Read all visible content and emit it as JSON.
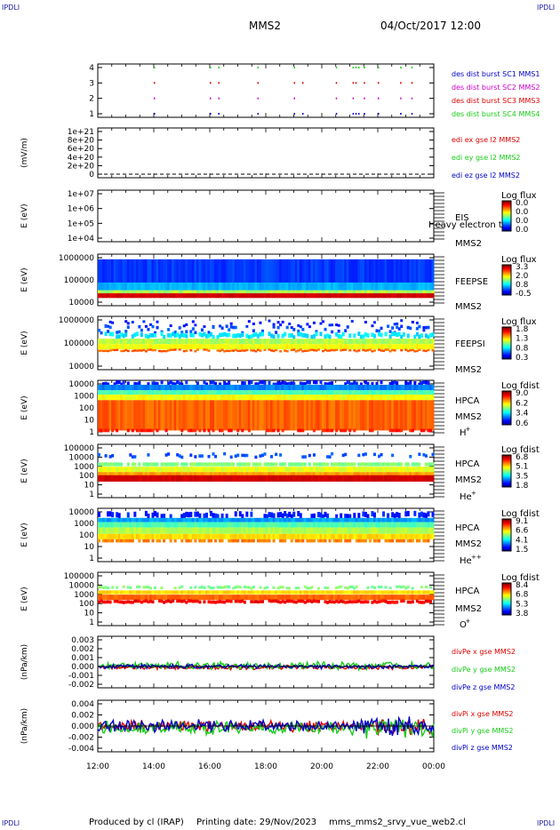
{
  "corners": {
    "tl": "IPDLI",
    "tr": "IPDLI",
    "bl": "IPDLI",
    "br": "IPDLI"
  },
  "header": {
    "spacecraft": "MMS2",
    "datetime": "04/Oct/2017 12:00"
  },
  "footer": {
    "produced": "Produced by cl (IRAP)",
    "printing": "Printing date: 29/Nov/2023",
    "file": "mms_mms2_srvy_vue_web2.cl"
  },
  "colors": {
    "red": "#e00000",
    "green": "#18cc18",
    "blue": "#0000c8",
    "magenta": "#cc00cc",
    "black": "#000000"
  },
  "chart_data": [
    {
      "type": "scatter",
      "name": "burst",
      "ylim": [
        0.5,
        4.5
      ],
      "ticks": [
        "1",
        "2",
        "3",
        "4"
      ],
      "ylabel": "",
      "legend": [
        {
          "text": "des dist burst SC1 MMS1",
          "color": "#0000c8"
        },
        {
          "text": "des dist burst SC2 MMS2",
          "color": "#cc00cc"
        },
        {
          "text": "des dist burst SC3 MMS3",
          "color": "#e00000"
        },
        {
          "text": "des dist burst SC4 MMS4",
          "color": "#18cc18"
        }
      ],
      "series": [
        {
          "level": 4,
          "color": "#18cc18",
          "x": [
            14.0,
            16.0,
            16.3,
            17.7,
            19.0,
            20.5,
            21.1,
            21.2,
            21.3,
            21.5,
            22.0,
            22.8,
            23.2
          ]
        },
        {
          "level": 3,
          "color": "#e00000",
          "x": [
            14.0,
            16.0,
            16.3,
            17.7,
            19.0,
            19.3,
            20.5,
            21.1,
            21.2,
            21.5,
            22.0,
            22.8,
            23.2
          ]
        },
        {
          "level": 2,
          "color": "#cc00cc",
          "x": [
            14.0,
            16.0,
            16.3,
            17.7,
            19.0,
            20.5,
            21.1,
            21.5,
            22.0,
            22.8,
            23.2
          ]
        },
        {
          "level": 1,
          "color": "#0000c8",
          "x": [
            14.0,
            16.0,
            16.3,
            17.7,
            19.0,
            19.3,
            20.5,
            21.1,
            21.2,
            21.3,
            21.5,
            22.0,
            22.8,
            23.2
          ]
        }
      ]
    },
    {
      "type": "line",
      "name": "edi",
      "ylabel": "(mV/m)",
      "ylim": [
        -1e+20,
        1.1e+21
      ],
      "ticks": [
        "0",
        "2e+20",
        "4e+20",
        "6e+20",
        "8e+20",
        "1e+21"
      ],
      "legend": [
        {
          "text": "edi ex gse l2 MMS2",
          "color": "#e00000"
        },
        {
          "text": "edi ey gse l2 MMS2",
          "color": "#18cc18"
        },
        {
          "text": "edi ez gse l2 MMS2",
          "color": "#0000c8"
        }
      ],
      "note": "dashed zero line only"
    },
    {
      "type": "heatmap",
      "name": "EIS",
      "ylabel": "E (eV)",
      "log": true,
      "ticks": [
        "1e+04",
        "1e+05",
        "1e+06",
        "1e+07"
      ],
      "labels": [
        "EIS",
        "MMS2"
      ],
      "overlay": "Heavy electron to",
      "cbar": {
        "title": "Log flux",
        "ticks": [
          "0.0",
          "0.0",
          "0.0",
          "0.0"
        ]
      }
    },
    {
      "type": "heatmap",
      "name": "FEEPSE",
      "ylabel": "E (eV)",
      "log": true,
      "ticks": [
        "10000",
        "100000",
        "1000000"
      ],
      "labels": [
        "FEEPSE",
        "MMS2"
      ],
      "cbar": {
        "title": "Log flux",
        "ticks": [
          "3.3",
          "2.0",
          "0.8",
          "-0.5"
        ]
      }
    },
    {
      "type": "heatmap",
      "name": "FEEPSI",
      "ylabel": "E (eV)",
      "log": true,
      "ticks": [
        "10000",
        "100000",
        "1000000"
      ],
      "labels": [
        "FEEPSI",
        "MMS2"
      ],
      "cbar": {
        "title": "Log flux",
        "ticks": [
          "1.8",
          "1.3",
          "0.8",
          "0.3"
        ]
      }
    },
    {
      "type": "heatmap",
      "name": "HPCA-H",
      "ylabel": "E (eV)",
      "log": true,
      "ticks": [
        "1",
        "10",
        "100",
        "1000",
        "10000"
      ],
      "labels": [
        "HPCA",
        "MMS2"
      ],
      "species": "H",
      "sup": "+",
      "cbar": {
        "title": "Log fdist",
        "ticks": [
          "9.0",
          "6.2",
          "3.4",
          "0.6"
        ]
      }
    },
    {
      "type": "heatmap",
      "name": "HPCA-He",
      "ylabel": "E (eV)",
      "log": true,
      "ticks": [
        "1",
        "10",
        "100",
        "1000",
        "10000",
        "100000"
      ],
      "labels": [
        "HPCA",
        "MMS2"
      ],
      "species": "He",
      "sup": "+",
      "cbar": {
        "title": "Log fdist",
        "ticks": [
          "6.8",
          "5.1",
          "3.5",
          "1.8"
        ]
      }
    },
    {
      "type": "heatmap",
      "name": "HPCA-He2",
      "ylabel": "E (eV)",
      "log": true,
      "ticks": [
        "1",
        "10",
        "100",
        "1000",
        "10000"
      ],
      "labels": [
        "HPCA",
        "MMS2"
      ],
      "species": "He",
      "sup": "++",
      "cbar": {
        "title": "Log fdist",
        "ticks": [
          "9.1",
          "6.6",
          "4.1",
          "1.5"
        ]
      }
    },
    {
      "type": "heatmap",
      "name": "HPCA-O",
      "ylabel": "E (eV)",
      "log": true,
      "ticks": [
        "1",
        "10",
        "100",
        "1000",
        "10000",
        "100000"
      ],
      "labels": [
        "HPCA",
        "MMS2"
      ],
      "species": "O",
      "sup": "+",
      "cbar": {
        "title": "Log fdist",
        "ticks": [
          "8.4",
          "6.8",
          "5.3",
          "3.8"
        ]
      }
    },
    {
      "type": "line",
      "name": "divPe",
      "ylabel": "(nPa/km)",
      "ylim": [
        -0.002,
        0.003
      ],
      "ticks": [
        "-0.002",
        "-0.001",
        "0.000",
        "0.001",
        "0.002",
        "0.003"
      ],
      "legend": [
        {
          "text": "divPe x gse MMS2",
          "color": "#e00000"
        },
        {
          "text": "divPe y gse MMS2",
          "color": "#18cc18"
        },
        {
          "text": "divPe z gse MMS2",
          "color": "#0000c8"
        }
      ],
      "bands": [
        {
          "color": "#e00000",
          "center": -0.0001,
          "amp": 0.0002
        },
        {
          "color": "#18cc18",
          "center": 0.0001,
          "amp": 0.00035
        },
        {
          "color": "#0000c8",
          "center": 0.0,
          "amp": 0.0002
        }
      ]
    },
    {
      "type": "line",
      "name": "divPi",
      "ylabel": "(nPa/km)",
      "ylim": [
        -0.005,
        0.005
      ],
      "ticks": [
        "-0.004",
        "-0.002",
        "0.000",
        "0.002",
        "0.004"
      ],
      "legend": [
        {
          "text": "divPi x gse MMS2",
          "color": "#e00000"
        },
        {
          "text": "divPi y gse MMS2",
          "color": "#18cc18"
        },
        {
          "text": "divPi z gse MMS2",
          "color": "#0000c8"
        }
      ],
      "bands": [
        {
          "color": "#e00000",
          "center": 0.0,
          "amp": 0.001
        },
        {
          "color": "#18cc18",
          "center": -0.0004,
          "amp": 0.0012
        },
        {
          "color": "#0000c8",
          "center": 0.0001,
          "amp": 0.0011
        }
      ]
    }
  ],
  "time_axis": {
    "range": [
      12,
      24
    ],
    "ticks": [
      12,
      14,
      16,
      18,
      20,
      22,
      24
    ],
    "labels": [
      "12:00",
      "14:00",
      "16:00",
      "18:00",
      "20:00",
      "22:00",
      "00:00"
    ]
  }
}
